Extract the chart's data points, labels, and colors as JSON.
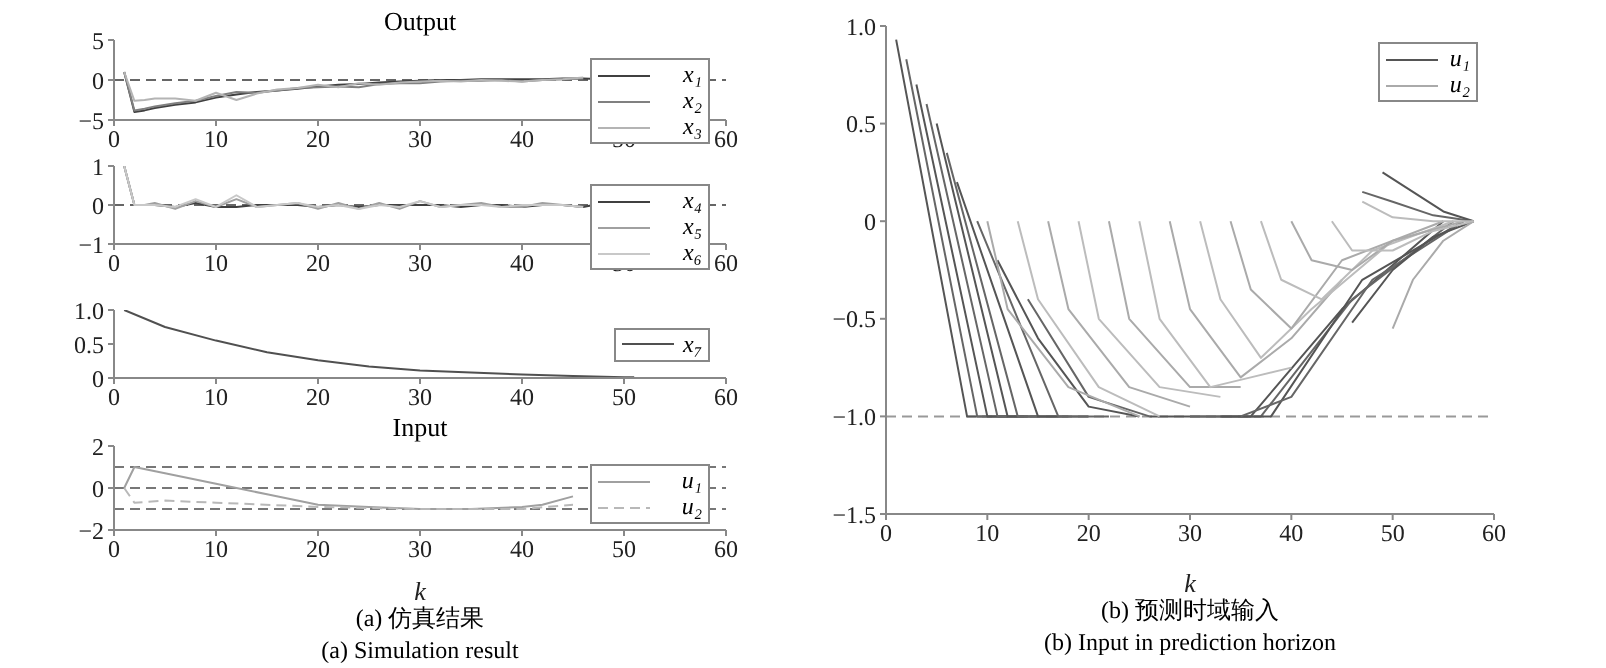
{
  "chart_data": [
    {
      "type": "line",
      "title": "Output",
      "xlim": [
        0,
        60
      ],
      "xticks": [
        0,
        10,
        20,
        30,
        40,
        50,
        60
      ],
      "ylim": [
        -5,
        5
      ],
      "yticks": [
        {
          "value": -5,
          "label": "−5"
        },
        0,
        5
      ],
      "legend": "right",
      "x": [
        1,
        2,
        3,
        4,
        6,
        8,
        10,
        12,
        14,
        16,
        18,
        20,
        22,
        24,
        26,
        28,
        30,
        32,
        34,
        36,
        38,
        40,
        42,
        44,
        46,
        48,
        50
      ],
      "ref_lines": [
        {
          "axis": "y",
          "value": 0,
          "color": "#666666",
          "line_style": "dashed"
        }
      ],
      "series": [
        {
          "name": "x₁",
          "color": "#404040",
          "values": [
            1,
            -4,
            -3.8,
            -3.5,
            -3.1,
            -2.8,
            -2.2,
            -1.8,
            -1.5,
            -1.3,
            -1.1,
            -0.8,
            -0.6,
            -0.5,
            -0.3,
            -0.2,
            -0.1,
            0,
            0,
            0.1,
            0.1,
            0.1,
            0.1,
            0.2,
            0.2,
            0.1,
            0
          ]
        },
        {
          "name": "x₂",
          "color": "#808080",
          "values": [
            1,
            -3.8,
            -3.6,
            -3.3,
            -2.9,
            -2.6,
            -2,
            -1.5,
            -1.6,
            -1.3,
            -1,
            -0.9,
            -0.8,
            -0.9,
            -0.5,
            -0.4,
            -0.4,
            -0.2,
            -0.1,
            -0.1,
            0,
            -0.2,
            0,
            0.1,
            0.2,
            null,
            null
          ]
        },
        {
          "name": "x₃",
          "color": "#b4b4b4",
          "values": [
            1,
            -2.6,
            -2.5,
            -2.3,
            -2.3,
            -2.6,
            -1.6,
            -2.5,
            -1.7,
            -1.2,
            -1,
            -0.6,
            -0.9,
            -0.4,
            -0.6,
            -0.3,
            -0.2,
            -0.1,
            -0.2,
            0,
            -0.1,
            -0.2,
            0,
            0.1,
            0.3,
            null,
            null
          ]
        }
      ]
    },
    {
      "type": "line",
      "xlim": [
        0,
        60
      ],
      "xticks": [
        0,
        10,
        20,
        30,
        40,
        50,
        60
      ],
      "ylim": [
        -1,
        1
      ],
      "yticks": [
        {
          "value": -1,
          "label": "−1"
        },
        0,
        1
      ],
      "legend": "right",
      "x": [
        1,
        2,
        3,
        4,
        6,
        8,
        10,
        12,
        14,
        16,
        18,
        20,
        22,
        24,
        26,
        28,
        30,
        32,
        34,
        36,
        38,
        40,
        42,
        44,
        46,
        48,
        50
      ],
      "ref_lines": [
        {
          "axis": "y",
          "value": 0,
          "color": "#666666",
          "line_style": "dashed"
        }
      ],
      "series": [
        {
          "name": "x₄",
          "color": "#404040",
          "values": [
            1,
            0,
            0,
            0,
            -0.05,
            0.05,
            -0.05,
            -0.05,
            0,
            0,
            0,
            -0.05,
            0,
            -0.05,
            0,
            0,
            0,
            0,
            -0.05,
            0,
            0,
            -0.05,
            0,
            0,
            -0.05,
            0.05,
            0
          ]
        },
        {
          "name": "x₅",
          "color": "#a0a0a0",
          "values": [
            1,
            0,
            0,
            0.05,
            -0.1,
            0.1,
            -0.05,
            0.15,
            -0.05,
            0,
            0.05,
            -0.1,
            0.05,
            -0.1,
            0.05,
            -0.1,
            0.1,
            -0.05,
            0,
            0.05,
            -0.05,
            -0.05,
            0.05,
            0,
            -0.05,
            null,
            null
          ]
        },
        {
          "name": "x₆",
          "color": "#c8c8c8",
          "values": [
            1,
            0,
            0,
            0,
            -0.05,
            0.15,
            -0.05,
            0.25,
            -0.05,
            0,
            0.05,
            -0.05,
            0,
            -0.1,
            0,
            -0.05,
            0.1,
            -0.05,
            0,
            0,
            -0.05,
            0,
            0,
            0,
            -0.05,
            null,
            null
          ]
        }
      ]
    },
    {
      "type": "line",
      "xlim": [
        0,
        60
      ],
      "xticks": [
        0,
        10,
        20,
        30,
        40,
        50,
        60
      ],
      "ylim": [
        0,
        1
      ],
      "yticks": [
        0,
        0.5,
        {
          "value": 1,
          "label": "1.0"
        }
      ],
      "legend": "right",
      "x": [
        1,
        5,
        10,
        15,
        20,
        25,
        30,
        35,
        40,
        45,
        50,
        51
      ],
      "series": [
        {
          "name": "x₇",
          "color": "#505050",
          "values": [
            1,
            0.75,
            0.55,
            0.38,
            0.26,
            0.17,
            0.11,
            0.08,
            0.05,
            0.03,
            0.01,
            0.01
          ]
        }
      ]
    },
    {
      "type": "line",
      "title": "Input",
      "xlabel": "k",
      "xlim": [
        0,
        60
      ],
      "xticks": [
        0,
        10,
        20,
        30,
        40,
        50,
        60
      ],
      "ylim": [
        -2,
        2
      ],
      "yticks": [
        {
          "value": -2,
          "label": "−2"
        },
        0,
        2
      ],
      "legend": "right",
      "ref_lines": [
        {
          "axis": "y",
          "value": 1,
          "color": "#777777",
          "line_style": "dashed"
        },
        {
          "axis": "y",
          "value": 0,
          "color": "#777777",
          "line_style": "dashed"
        },
        {
          "axis": "y",
          "value": -1,
          "color": "#777777",
          "line_style": "dashed"
        }
      ],
      "annotations": [
        "(a) 仿真结果",
        "(a) Simulation result"
      ],
      "series": [
        {
          "name": "u₁",
          "color": "#a0a0a0",
          "x": [
            1,
            2,
            5,
            10,
            15,
            20,
            25,
            30,
            35,
            40,
            42,
            45
          ],
          "values": [
            0,
            1,
            0.7,
            0.2,
            -0.3,
            -0.8,
            -0.9,
            -1,
            -1,
            -0.9,
            -0.8,
            -0.4
          ]
        },
        {
          "name": "u₂",
          "color": "#b8b8b8",
          "line_style": "dashed",
          "x": [
            1,
            2,
            5,
            10,
            20,
            30,
            40,
            45
          ],
          "values": [
            0,
            -0.7,
            -0.6,
            -0.7,
            -0.9,
            -1,
            -1,
            -0.8
          ]
        }
      ]
    },
    {
      "type": "line",
      "xlabel": "k",
      "xlim": [
        0,
        60
      ],
      "xticks": [
        0,
        10,
        20,
        30,
        40,
        50,
        60
      ],
      "ylim": [
        -1.5,
        1
      ],
      "yticks": [
        {
          "value": -1.5,
          "label": "−1.5"
        },
        {
          "value": -1,
          "label": "−1.0"
        },
        {
          "value": -0.5,
          "label": "−0.5"
        },
        0,
        0.5,
        {
          "value": 1,
          "label": "1.0"
        }
      ],
      "legend": "top right",
      "ref_lines": [
        {
          "axis": "y",
          "value": -1,
          "color": "#999999",
          "line_style": "dashed"
        }
      ],
      "annotations": [
        "(b) 预测时域输入",
        "(b) Input in prediction horizon"
      ],
      "series": [
        {
          "name": "u₁",
          "color": "#555555",
          "x": [
            1,
            8,
            12
          ],
          "values": [
            0.93,
            -1,
            -1
          ]
        },
        {
          "color": "#666666",
          "x": [
            2,
            9,
            13
          ],
          "values": [
            0.83,
            -1,
            -1
          ]
        },
        {
          "color": "#555555",
          "x": [
            3,
            10,
            14
          ],
          "values": [
            0.7,
            -1,
            -1
          ]
        },
        {
          "color": "#666666",
          "x": [
            4,
            11,
            15
          ],
          "values": [
            0.6,
            -1,
            -1
          ]
        },
        {
          "color": "#555555",
          "x": [
            5,
            12,
            17
          ],
          "values": [
            0.5,
            -1,
            -1
          ]
        },
        {
          "color": "#666666",
          "x": [
            6,
            13,
            18
          ],
          "values": [
            0.35,
            -1,
            -1
          ]
        },
        {
          "color": "#555555",
          "x": [
            7,
            15,
            20
          ],
          "values": [
            0.2,
            -1,
            -1
          ]
        },
        {
          "color": "#666666",
          "x": [
            9,
            17,
            22
          ],
          "values": [
            0,
            -1,
            -1
          ]
        },
        {
          "color": "#555555",
          "x": [
            11,
            15,
            20,
            25
          ],
          "values": [
            -0.2,
            -0.6,
            -0.95,
            -1
          ]
        },
        {
          "color": "#666666",
          "x": [
            14,
            20,
            26
          ],
          "values": [
            -0.4,
            -0.9,
            -1
          ]
        },
        {
          "color": "#555555",
          "x": [
            26,
            36,
            45,
            55
          ],
          "values": [
            -1,
            -1,
            -0.45,
            0
          ]
        },
        {
          "color": "#666666",
          "x": [
            30,
            37,
            46,
            56
          ],
          "values": [
            -1,
            -1,
            -0.4,
            0
          ]
        },
        {
          "color": "#555555",
          "x": [
            33,
            38,
            47,
            57
          ],
          "values": [
            -1,
            -1,
            -0.3,
            0
          ]
        },
        {
          "color": "#666666",
          "x": [
            35,
            40,
            48,
            57
          ],
          "values": [
            -1,
            -0.9,
            -0.3,
            0
          ]
        },
        {
          "color": "#555555",
          "x": [
            46,
            50,
            54,
            58
          ],
          "values": [
            -0.52,
            -0.25,
            -0.08,
            0
          ]
        },
        {
          "color": "#666666",
          "x": [
            47,
            50,
            54,
            58
          ],
          "values": [
            0.15,
            0.1,
            0.03,
            0
          ]
        },
        {
          "color": "#555555",
          "x": [
            49,
            52,
            55,
            58
          ],
          "values": [
            0.25,
            0.15,
            0.05,
            0
          ]
        },
        {
          "name": "u₂",
          "color": "#aaaaaa",
          "x": [
            10,
            12,
            18,
            25
          ],
          "values": [
            0,
            -0.45,
            -0.85,
            -1
          ]
        },
        {
          "color": "#bcbcbc",
          "x": [
            13,
            15,
            21,
            27
          ],
          "values": [
            0,
            -0.4,
            -0.85,
            -1
          ]
        },
        {
          "color": "#aaaaaa",
          "x": [
            16,
            18,
            24,
            30
          ],
          "values": [
            0,
            -0.45,
            -0.85,
            -0.95
          ]
        },
        {
          "color": "#bcbcbc",
          "x": [
            19,
            21,
            27,
            33
          ],
          "values": [
            0,
            -0.5,
            -0.85,
            -0.9
          ]
        },
        {
          "color": "#aaaaaa",
          "x": [
            22,
            24,
            30,
            35
          ],
          "values": [
            0,
            -0.5,
            -0.85,
            -0.85
          ]
        },
        {
          "color": "#bcbcbc",
          "x": [
            25,
            27,
            32,
            36,
            40
          ],
          "values": [
            0,
            -0.5,
            -0.85,
            -0.8,
            -0.75
          ]
        },
        {
          "color": "#aaaaaa",
          "x": [
            28,
            30,
            35,
            40,
            45
          ],
          "values": [
            0,
            -0.45,
            -0.8,
            -0.6,
            -0.3
          ]
        },
        {
          "color": "#bcbcbc",
          "x": [
            31,
            33,
            37,
            42,
            50
          ],
          "values": [
            0,
            -0.4,
            -0.7,
            -0.45,
            -0.1
          ]
        },
        {
          "color": "#aaaaaa",
          "x": [
            34,
            36,
            40,
            45,
            55
          ],
          "values": [
            0,
            -0.35,
            -0.55,
            -0.2,
            0
          ]
        },
        {
          "color": "#bcbcbc",
          "x": [
            37,
            39,
            43,
            48,
            56
          ],
          "values": [
            0,
            -0.3,
            -0.4,
            -0.15,
            0
          ]
        },
        {
          "color": "#aaaaaa",
          "x": [
            40,
            42,
            46,
            50,
            57
          ],
          "values": [
            0,
            -0.2,
            -0.25,
            -0.1,
            0
          ]
        },
        {
          "color": "#bcbcbc",
          "x": [
            44,
            46,
            50,
            54,
            58
          ],
          "values": [
            0,
            -0.15,
            -0.15,
            -0.05,
            0
          ]
        },
        {
          "color": "#aaaaaa",
          "x": [
            50,
            52,
            55,
            58
          ],
          "values": [
            -0.55,
            -0.3,
            -0.1,
            0
          ]
        },
        {
          "color": "#bcbcbc",
          "x": [
            47,
            50,
            54,
            58
          ],
          "values": [
            0.1,
            0.02,
            0,
            0
          ]
        }
      ]
    }
  ]
}
